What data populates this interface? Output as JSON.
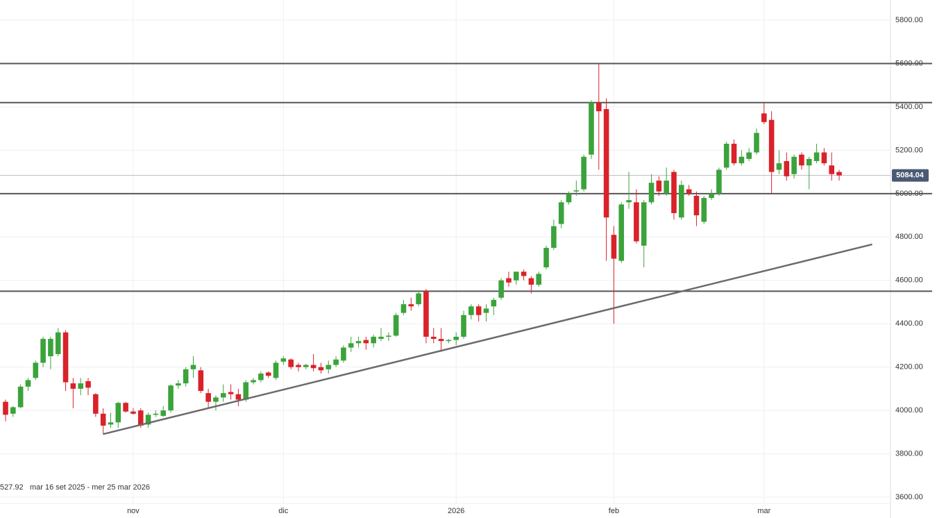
{
  "chart_data": {
    "type": "candlestick",
    "categories": [
      null,
      null,
      null,
      null,
      null,
      null,
      null,
      null,
      null,
      null,
      null,
      null,
      null,
      null,
      null,
      null,
      null,
      "nov",
      null,
      null,
      null,
      null,
      null,
      null,
      null,
      null,
      null,
      null,
      null,
      null,
      null,
      null,
      null,
      null,
      null,
      null,
      null,
      "dic",
      null,
      null,
      null,
      null,
      null,
      null,
      null,
      null,
      null,
      null,
      null,
      null,
      null,
      null,
      null,
      null,
      null,
      null,
      null,
      null,
      null,
      null,
      "2026",
      null,
      null,
      null,
      null,
      null,
      null,
      null,
      null,
      null,
      null,
      null,
      null,
      null,
      null,
      null,
      null,
      null,
      null,
      null,
      null,
      "feb",
      null,
      null,
      null,
      null,
      null,
      null,
      null,
      null,
      null,
      null,
      null,
      null,
      null,
      null,
      null,
      null,
      null,
      null,
      null,
      "mar",
      null,
      null,
      null,
      null,
      null,
      null,
      null,
      null,
      null,
      null
    ],
    "open": [
      4040,
      3985,
      4015,
      4110,
      4150,
      4220,
      4250,
      4260,
      4360,
      4125,
      4100,
      4135,
      4075,
      3985,
      3935,
      3945,
      4035,
      3995,
      4000,
      3935,
      3980,
      3975,
      4000,
      4115,
      4125,
      4190,
      4185,
      4080,
      4040,
      4060,
      4085,
      4075,
      4050,
      4130,
      4140,
      4175,
      4150,
      4225,
      4235,
      4210,
      4200,
      4210,
      4200,
      4190,
      4210,
      4230,
      4290,
      4310,
      4325,
      4310,
      4330,
      4340,
      4345,
      4450,
      4490,
      4490,
      4550,
      4340,
      4330,
      4320,
      4325,
      4340,
      4440,
      4480,
      4450,
      4480,
      4520,
      4610,
      4600,
      4640,
      4610,
      4580,
      4660,
      4750,
      4860,
      4960,
      5010,
      5020,
      5180,
      5420,
      5390,
      4810,
      4690,
      4960,
      4960,
      4760,
      4960,
      5060,
      5000,
      5100,
      4890,
      5020,
      4990,
      4870,
      4980,
      5000,
      5120,
      5230,
      5140,
      5160,
      5190,
      5370,
      5340,
      5110,
      5150,
      5090,
      5180,
      5130,
      5150,
      5190,
      5130,
      5100
    ],
    "high": [
      4050,
      4020,
      4120,
      4150,
      4230,
      4340,
      4340,
      4380,
      4370,
      4150,
      4150,
      4150,
      4080,
      4010,
      3990,
      4040,
      4040,
      4010,
      4010,
      3990,
      4000,
      4020,
      4120,
      4140,
      4200,
      4250,
      4200,
      4100,
      4070,
      4120,
      4120,
      4100,
      4140,
      4150,
      4180,
      4180,
      4230,
      4250,
      4240,
      4220,
      4215,
      4260,
      4220,
      4230,
      4250,
      4300,
      4340,
      4340,
      4340,
      4350,
      4380,
      4360,
      4450,
      4510,
      4520,
      4550,
      4560,
      4380,
      4380,
      4330,
      4360,
      4460,
      4490,
      4490,
      4490,
      4520,
      4610,
      4640,
      4640,
      4650,
      4620,
      4640,
      4760,
      4880,
      4970,
      5010,
      5060,
      5180,
      5430,
      5600,
      5440,
      4850,
      4960,
      5100,
      5020,
      4970,
      5090,
      5080,
      5120,
      5110,
      5060,
      5040,
      5010,
      4990,
      5020,
      5120,
      5240,
      5250,
      5200,
      5210,
      5300,
      5420,
      5380,
      5200,
      5190,
      5180,
      5190,
      5170,
      5230,
      5210,
      5190,
      5110
    ],
    "low": [
      3950,
      3970,
      4010,
      4090,
      4140,
      4200,
      4190,
      4250,
      4090,
      4010,
      4070,
      4070,
      3970,
      3890,
      3920,
      3920,
      3990,
      3980,
      3920,
      3920,
      3970,
      3970,
      3990,
      4100,
      4110,
      4150,
      4080,
      4010,
      4000,
      4040,
      4050,
      4020,
      4040,
      4120,
      4130,
      4150,
      4140,
      4210,
      4190,
      4180,
      4190,
      4180,
      4170,
      4170,
      4200,
      4220,
      4270,
      4290,
      4280,
      4290,
      4320,
      4320,
      4340,
      4440,
      4460,
      4480,
      4310,
      4310,
      4270,
      4310,
      4300,
      4330,
      4420,
      4410,
      4410,
      4440,
      4510,
      4570,
      4580,
      4600,
      4540,
      4570,
      4650,
      4740,
      4840,
      4950,
      4990,
      5010,
      5160,
      5110,
      4690,
      4400,
      4680,
      4930,
      4770,
      4660,
      4950,
      4990,
      4990,
      4880,
      4880,
      4990,
      4850,
      4860,
      4970,
      4990,
      5110,
      5130,
      5130,
      5150,
      5180,
      5320,
      5000,
      5090,
      5060,
      5070,
      5110,
      5020,
      5140,
      5130,
      5060,
      5060
    ],
    "close": [
      3980,
      4015,
      4110,
      4140,
      4220,
      4330,
      4330,
      4360,
      4130,
      4100,
      4125,
      4105,
      3985,
      3930,
      3945,
      4035,
      3995,
      3985,
      3930,
      3980,
      3985,
      4000,
      4115,
      4125,
      4190,
      4210,
      4090,
      4040,
      4060,
      4080,
      4075,
      4050,
      4130,
      4140,
      4170,
      4160,
      4220,
      4240,
      4200,
      4200,
      4210,
      4195,
      4185,
      4210,
      4235,
      4290,
      4310,
      4320,
      4310,
      4340,
      4340,
      4345,
      4440,
      4490,
      4480,
      4540,
      4340,
      4330,
      4320,
      4325,
      4340,
      4440,
      4480,
      4440,
      4470,
      4510,
      4600,
      4590,
      4640,
      4620,
      4580,
      4630,
      4750,
      4850,
      4960,
      5000,
      5015,
      5170,
      5420,
      5380,
      4890,
      4700,
      4950,
      4970,
      4780,
      4960,
      5050,
      5010,
      5060,
      4910,
      5040,
      5000,
      4900,
      4980,
      5000,
      5110,
      5230,
      5140,
      5170,
      5190,
      5280,
      5330,
      5100,
      5140,
      5080,
      5170,
      5130,
      5160,
      5190,
      5140,
      5090,
      5084.04
    ],
    "up_color": "#3ba33b",
    "down_color": "#d9222a",
    "ylim": [
      3504,
      5893
    ],
    "yticks": [
      {
        "value": 3600,
        "label": "3600.00"
      },
      {
        "value": 3800,
        "label": "3800.00"
      },
      {
        "value": 4000,
        "label": "4000.00"
      },
      {
        "value": 4200,
        "label": "4200.00"
      },
      {
        "value": 4400,
        "label": "4400.00"
      },
      {
        "value": 4600,
        "label": "4600.00"
      },
      {
        "value": 4800,
        "label": "4800.00"
      },
      {
        "value": 5000,
        "label": "5000.00"
      },
      {
        "value": 5200,
        "label": "5200.00"
      },
      {
        "value": 5400,
        "label": "5400.00"
      },
      {
        "value": 5600,
        "label": "5600.00"
      },
      {
        "value": 5800,
        "label": "5800.00"
      }
    ],
    "hlines": [
      5600,
      5420,
      5000,
      4550
    ],
    "trendline": {
      "x": [
        13,
        115.4
      ],
      "values": [
        3891,
        4766
      ]
    },
    "grid": true,
    "info": [
      "527.92",
      "mar 16 set 2025 - mer 25 mar 2026"
    ]
  }
}
